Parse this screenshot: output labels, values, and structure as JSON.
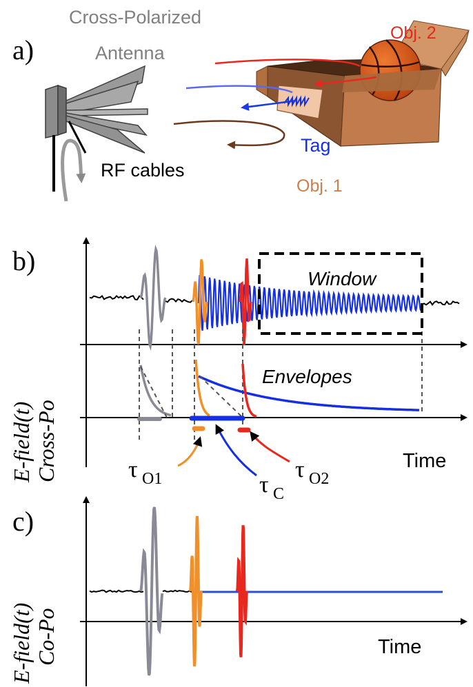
{
  "panel_a": {
    "label": "a)",
    "antenna_label_line1": "Cross-Polarized",
    "antenna_label_line2": "Antenna",
    "rf_cables_label": "RF cables",
    "obj2_label": "Obj. 2",
    "tag_label": "Tag",
    "obj1_label": "Obj. 1"
  },
  "panel_b": {
    "label": "b)",
    "window_label": "Window",
    "envelopes_label": "Envelopes",
    "ylabel_line1": "E-field(t)",
    "ylabel_line2": "Cross-Po",
    "xlabel": "Time",
    "tau_o1": {
      "symbol": "τ",
      "sub": "O1"
    },
    "tau_c": {
      "symbol": "τ",
      "sub": "C"
    },
    "tau_o2": {
      "symbol": "τ",
      "sub": "O2"
    }
  },
  "panel_c": {
    "label": "c)",
    "ylabel_line1": "E-field(t)",
    "ylabel_line2": "Co-Po",
    "xlabel": "Time"
  },
  "colors": {
    "gray": "#8a8a96",
    "orange": "#f0902a",
    "red": "#e8281e",
    "blue": "#1530e0",
    "brown": "#6b3a1e",
    "box": "#b9764a",
    "black": "#000000",
    "label_gray": "#808080",
    "obj1_text": "#c9804a"
  }
}
